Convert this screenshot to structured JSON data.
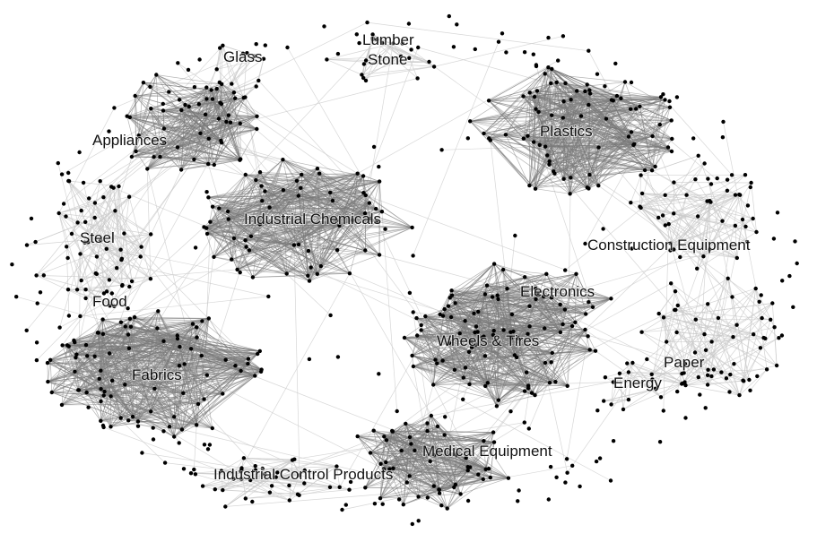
{
  "diagram": {
    "type": "network-graph",
    "colors": {
      "background": "#ffffff",
      "node": "#000000",
      "dense_edge": "#7a7a7a",
      "sparse_edge": "#c9c9c9"
    },
    "clusters": [
      {
        "id": "glass",
        "label": "Glass"
      },
      {
        "id": "lumber",
        "label": "Lumber"
      },
      {
        "id": "stone",
        "label": "Stone"
      },
      {
        "id": "plastics",
        "label": "Plastics"
      },
      {
        "id": "appliances",
        "label": "Appliances"
      },
      {
        "id": "industrial-chemicals",
        "label": "Industrial Chemicals"
      },
      {
        "id": "steel",
        "label": "Steel"
      },
      {
        "id": "construction-equipment",
        "label": "Construction Equipment"
      },
      {
        "id": "food",
        "label": "Food"
      },
      {
        "id": "electronics",
        "label": "Electronics"
      },
      {
        "id": "wheels-tires",
        "label": "Wheels & Tires"
      },
      {
        "id": "fabrics",
        "label": "Fabrics"
      },
      {
        "id": "paper",
        "label": "Paper"
      },
      {
        "id": "energy",
        "label": "Energy"
      },
      {
        "id": "medical-equipment",
        "label": "Medical Equipment"
      },
      {
        "id": "industrial-control-products",
        "label": "Industrial Control Products"
      }
    ]
  }
}
